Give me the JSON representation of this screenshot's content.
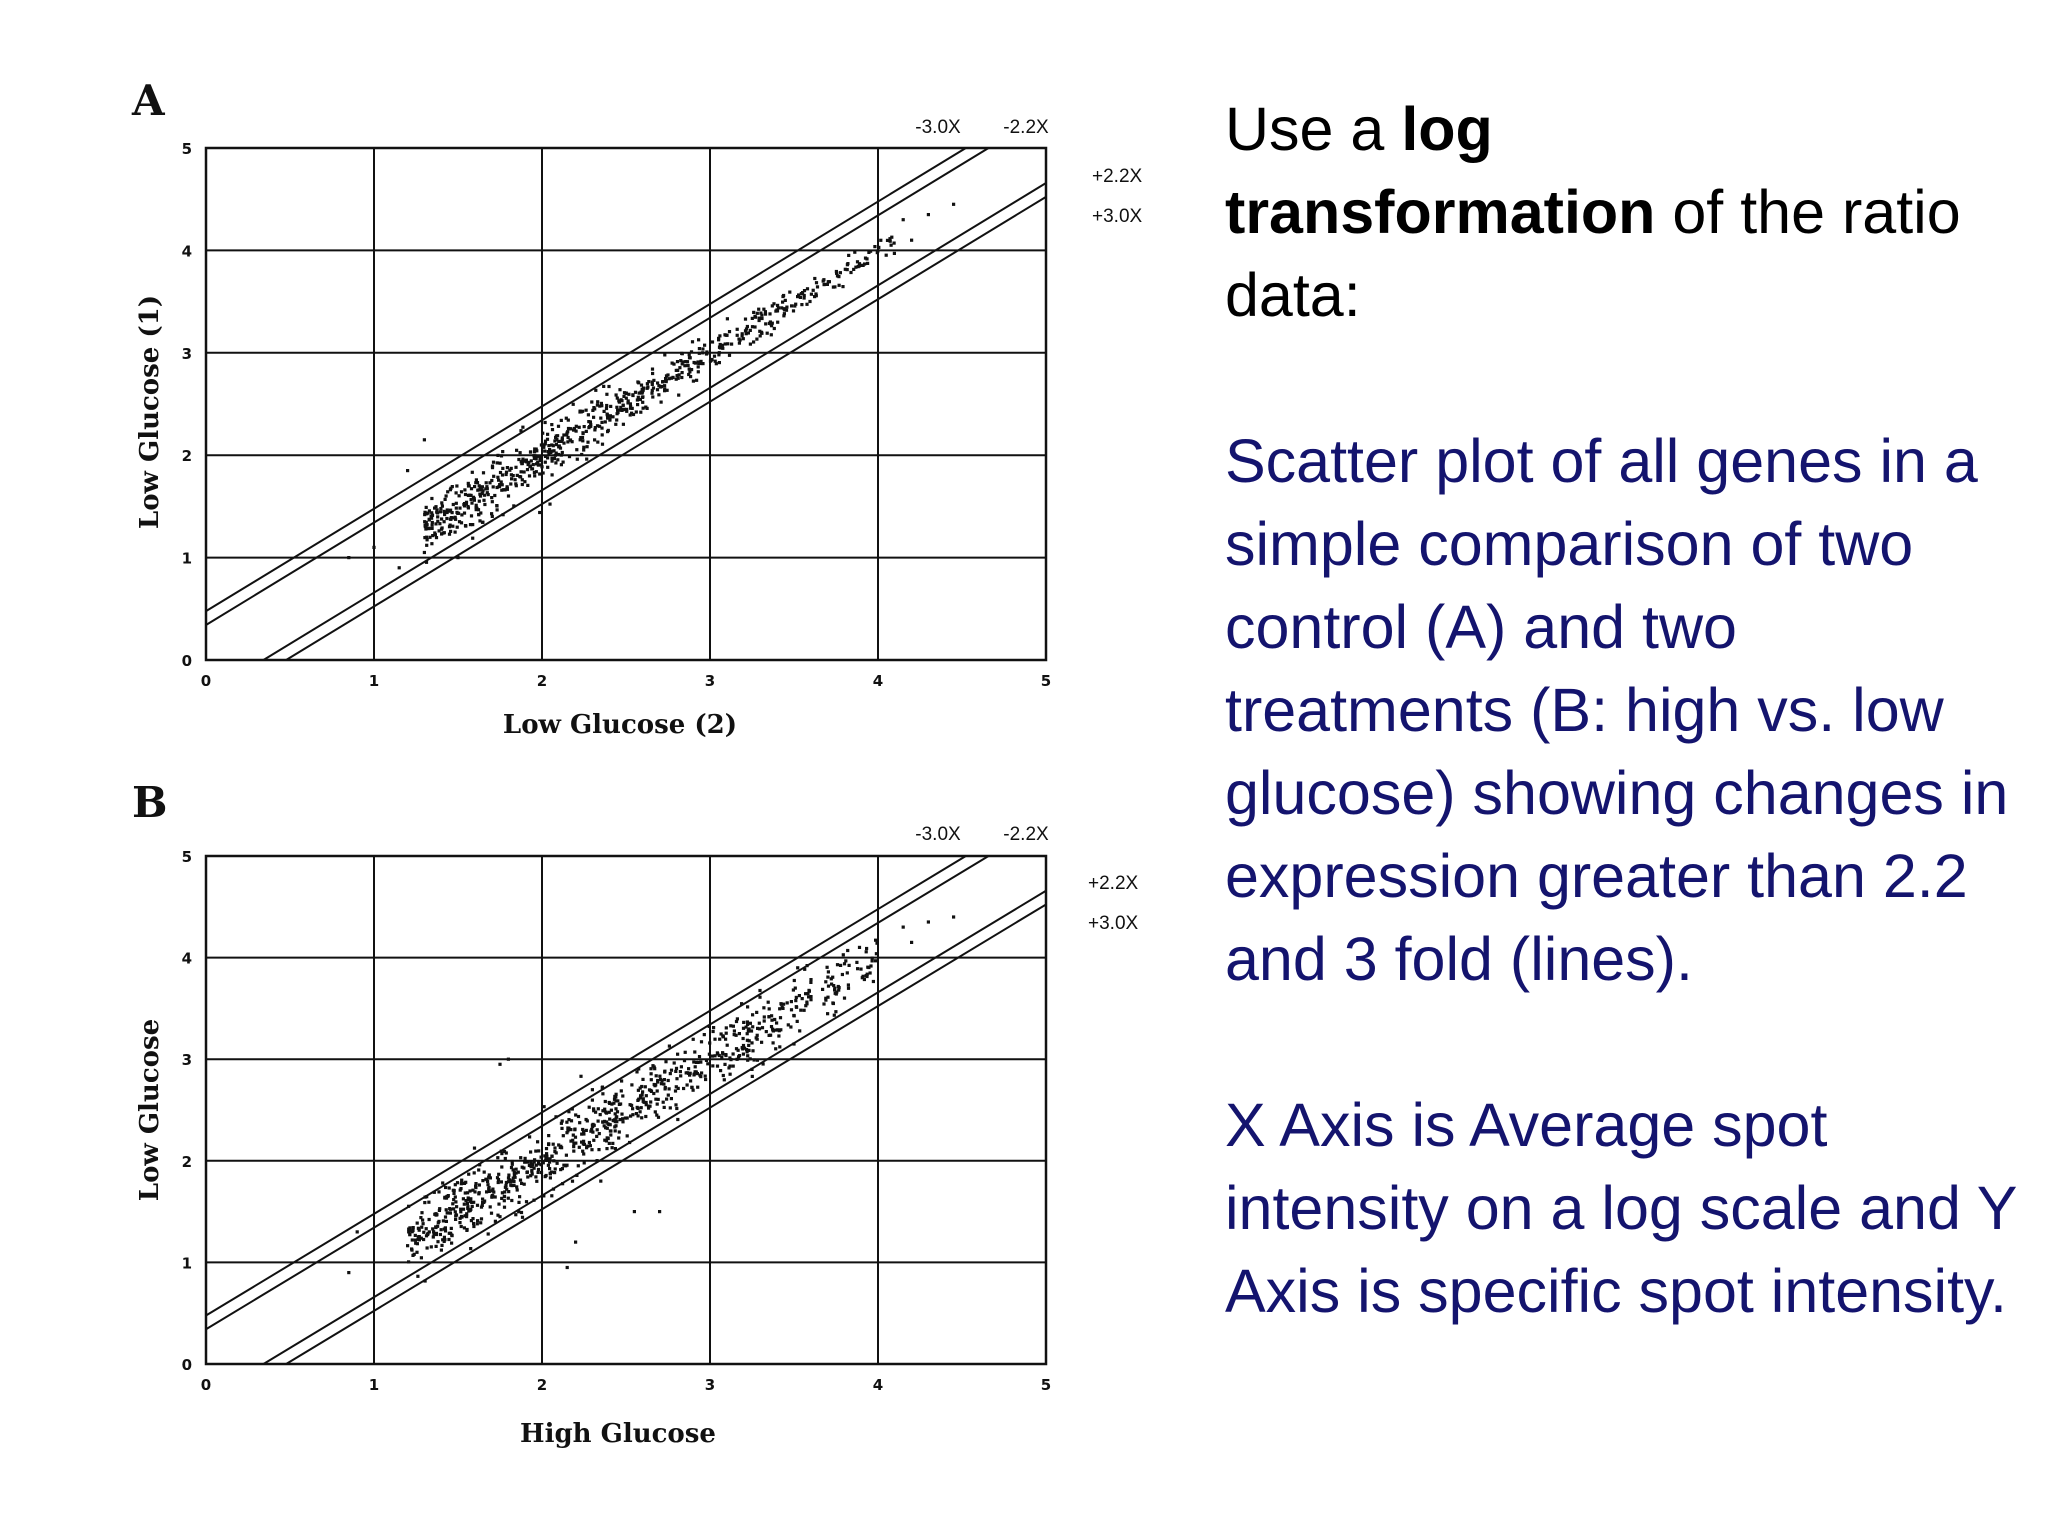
{
  "colors": {
    "text": "#000000",
    "body_blue": "#14146e",
    "ink": "#111111"
  },
  "intro": {
    "pre": "Use a ",
    "bold1": "log",
    "bold2": "transformation",
    "post": " of the ratio data:"
  },
  "description": "Scatter plot of all genes in a simple comparison of two control (A) and two treatments (B: high vs. low glucose) showing changes in expression greater than 2.2 and 3 fold (lines).",
  "axis_note": "X Axis is Average spot intensity on a log  scale and Y Axis is specific spot intensity.",
  "chart_data": [
    {
      "type": "scatter",
      "panel": "A",
      "xlabel": "Low Glucose (2)",
      "ylabel": "Low Glucose (1)",
      "xlim": [
        0,
        5
      ],
      "ylim": [
        0,
        5
      ],
      "ticks": [
        "0",
        "1",
        "2",
        "3",
        "4",
        "5"
      ],
      "grid": true,
      "fold_lines": [
        {
          "label": "-3.0X",
          "offset": 0.477
        },
        {
          "label": "-2.2X",
          "offset": 0.342
        },
        {
          "label": "+2.2X",
          "offset": -0.342
        },
        {
          "label": "+3.0X",
          "offset": -0.477
        }
      ],
      "cloud": [
        {
          "x0": 1.3,
          "x1": 2.4,
          "n": 420,
          "sd": 0.13
        },
        {
          "x0": 2.4,
          "x1": 3.4,
          "n": 240,
          "sd": 0.09
        },
        {
          "x0": 3.4,
          "x1": 4.1,
          "n": 90,
          "sd": 0.06
        }
      ],
      "points": [
        [
          1.3,
          2.15
        ],
        [
          1.0,
          1.1
        ],
        [
          1.15,
          0.9
        ],
        [
          1.5,
          1.0
        ],
        [
          0.85,
          1.0
        ],
        [
          1.2,
          1.85
        ],
        [
          1.3,
          1.05
        ],
        [
          4.15,
          4.3
        ],
        [
          4.3,
          4.35
        ],
        [
          4.45,
          4.45
        ],
        [
          4.2,
          4.1
        ]
      ]
    },
    {
      "type": "scatter",
      "panel": "B",
      "xlabel": "High Glucose",
      "ylabel": "Low Glucose",
      "xlim": [
        0,
        5
      ],
      "ylim": [
        0,
        5
      ],
      "ticks": [
        "0",
        "1",
        "2",
        "3",
        "4",
        "5"
      ],
      "grid": true,
      "fold_lines": [
        {
          "label": "-3.0X",
          "offset": 0.477
        },
        {
          "label": "-2.2X",
          "offset": 0.342
        },
        {
          "label": "+2.2X",
          "offset": -0.342
        },
        {
          "label": "+3.0X",
          "offset": -0.477
        }
      ],
      "cloud": [
        {
          "x0": 1.2,
          "x1": 2.4,
          "n": 460,
          "sd": 0.17
        },
        {
          "x0": 2.4,
          "x1": 3.4,
          "n": 300,
          "sd": 0.14
        },
        {
          "x0": 3.4,
          "x1": 4.0,
          "n": 110,
          "sd": 0.14
        }
      ],
      "points": [
        [
          1.8,
          3.0
        ],
        [
          1.75,
          2.95
        ],
        [
          1.75,
          1.45
        ],
        [
          2.2,
          1.2
        ],
        [
          2.15,
          0.95
        ],
        [
          2.7,
          1.5
        ],
        [
          2.55,
          1.5
        ],
        [
          0.9,
          1.3
        ],
        [
          0.85,
          0.9
        ],
        [
          4.15,
          4.3
        ],
        [
          4.3,
          4.35
        ],
        [
          4.45,
          4.4
        ],
        [
          4.2,
          4.15
        ],
        [
          2.3,
          2.7
        ],
        [
          2.35,
          1.8
        ],
        [
          3.25,
          2.9
        ]
      ]
    }
  ]
}
